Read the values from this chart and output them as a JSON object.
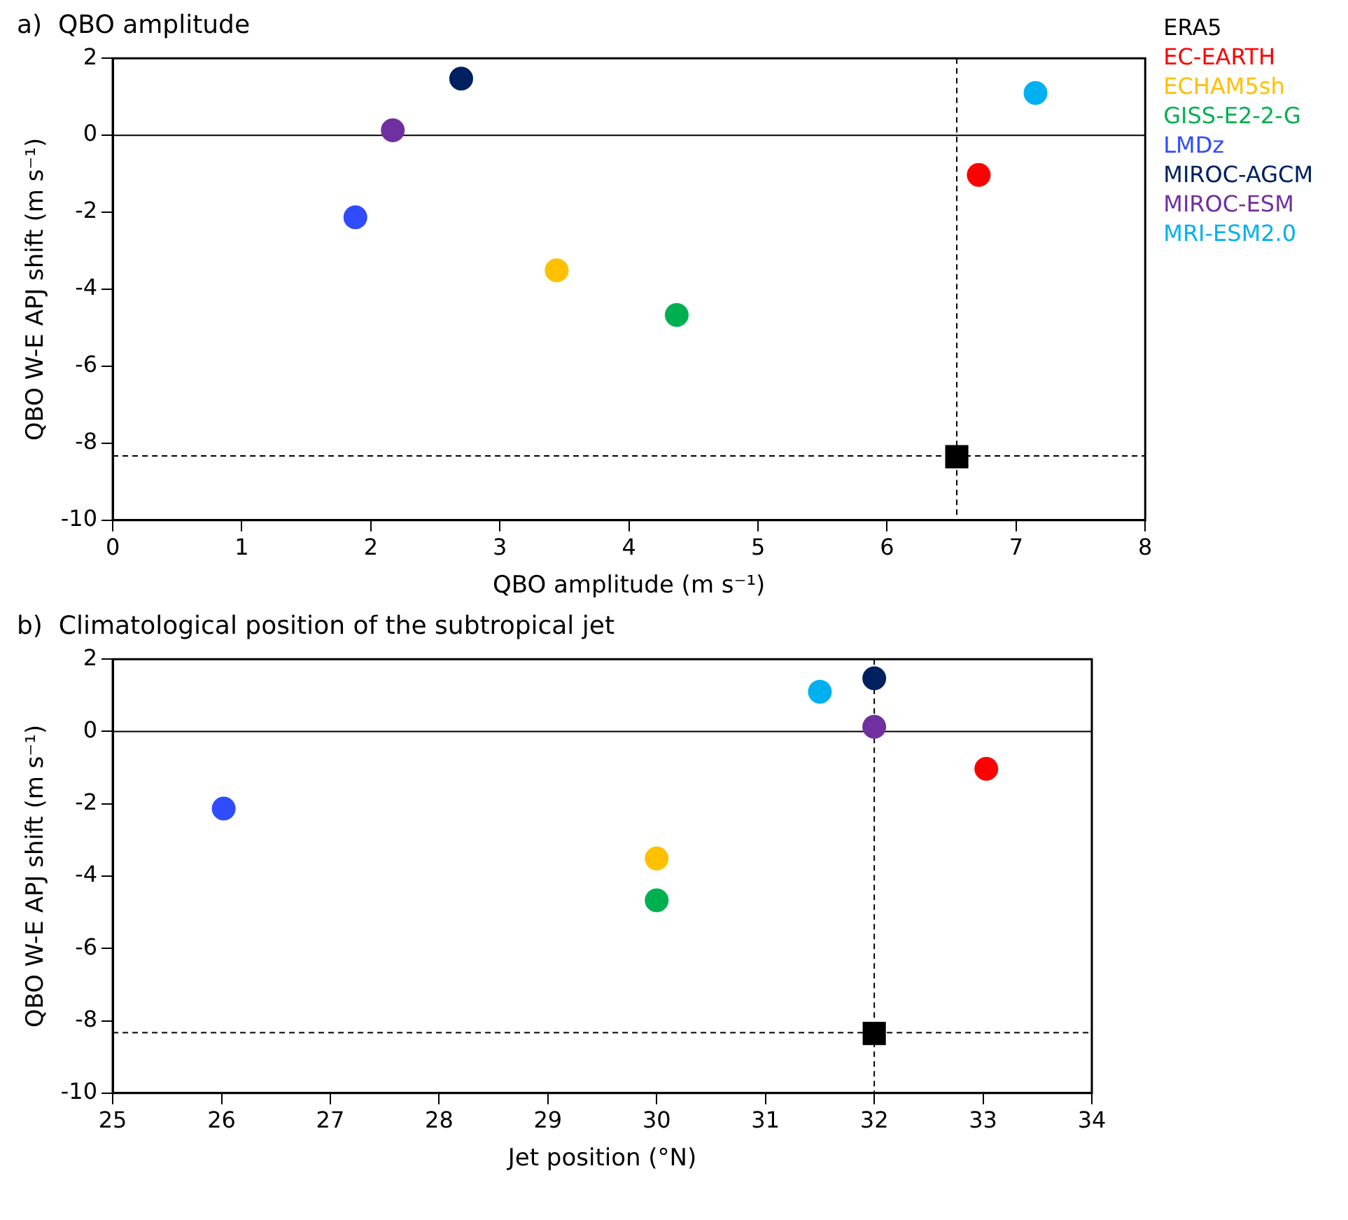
{
  "chart_data": [
    {
      "type": "scatter",
      "title": "a)  QBO amplitude",
      "xlabel": "QBO amplitude (m s⁻¹)",
      "ylabel": "QBO W-E APJ shift (m s⁻¹)",
      "xlim": [
        0,
        8
      ],
      "xticks": [
        0,
        1,
        2,
        3,
        4,
        5,
        6,
        7,
        8
      ],
      "ylim": [
        -10,
        2
      ],
      "yticks": [
        -10,
        -8,
        -6,
        -4,
        -2,
        0,
        2
      ],
      "grid": false,
      "legend": "top right",
      "marker": "circle",
      "ref_lines": [
        {
          "axis": "y",
          "value": 0,
          "color": "#000000",
          "line_style": "solid"
        },
        {
          "axis": "x",
          "value": 6.54,
          "color": "#000000",
          "line_style": "dashed"
        },
        {
          "axis": "y",
          "value": -8.33,
          "color": "#000000",
          "line_style": "dashed"
        }
      ],
      "series": [
        {
          "name": "ERA5",
          "color": "#000000",
          "marker": "square",
          "x": [
            6.54
          ],
          "values": [
            -8.35
          ]
        },
        {
          "name": "EC-EARTH",
          "color": "#ff0000",
          "x": [
            6.71
          ],
          "values": [
            -1.03
          ]
        },
        {
          "name": "ECHAM5sh",
          "color": "#ffc000",
          "x": [
            3.44
          ],
          "values": [
            -3.51
          ]
        },
        {
          "name": "GISS-E2-2-G",
          "color": "#00b050",
          "x": [
            4.37
          ],
          "values": [
            -4.67
          ]
        },
        {
          "name": "LMDz",
          "color": "#2f4cff",
          "x": [
            1.88
          ],
          "values": [
            -2.13
          ]
        },
        {
          "name": "MIROC-AGCM",
          "color": "#002060",
          "x": [
            2.7
          ],
          "values": [
            1.47
          ]
        },
        {
          "name": "MIROC-ESM",
          "color": "#7030a0",
          "x": [
            2.17
          ],
          "values": [
            0.13
          ]
        },
        {
          "name": "MRI-ESM2.0",
          "color": "#00b0f0",
          "x": [
            7.15
          ],
          "values": [
            1.1
          ]
        }
      ]
    },
    {
      "type": "scatter",
      "title": "b)  Climatological position of the subtropical jet",
      "xlabel": "Jet position (°N)",
      "ylabel": "QBO W-E APJ shift (m s⁻¹)",
      "xlim": [
        25,
        34
      ],
      "xticks": [
        25,
        26,
        27,
        28,
        29,
        30,
        31,
        32,
        33,
        34
      ],
      "ylim": [
        -10,
        2
      ],
      "yticks": [
        -10,
        -8,
        -6,
        -4,
        -2,
        0,
        2
      ],
      "grid": false,
      "marker": "circle",
      "ref_lines": [
        {
          "axis": "y",
          "value": 0,
          "color": "#000000",
          "line_style": "solid"
        },
        {
          "axis": "x",
          "value": 32,
          "color": "#000000",
          "line_style": "dashed"
        },
        {
          "axis": "y",
          "value": -8.33,
          "color": "#000000",
          "line_style": "dashed"
        }
      ],
      "series": [
        {
          "color": "#000000",
          "marker": "square",
          "x": [
            32
          ],
          "values": [
            -8.35
          ]
        },
        {
          "color": "#ff0000",
          "x": [
            33.03
          ],
          "values": [
            -1.03
          ]
        },
        {
          "color": "#ffc000",
          "x": [
            30
          ],
          "values": [
            -3.51
          ]
        },
        {
          "color": "#00b050",
          "x": [
            30
          ],
          "values": [
            -4.67
          ]
        },
        {
          "color": "#2f4cff",
          "x": [
            26.02
          ],
          "values": [
            -2.13
          ]
        },
        {
          "color": "#002060",
          "x": [
            32
          ],
          "values": [
            1.47
          ]
        },
        {
          "color": "#7030a0",
          "x": [
            32
          ],
          "values": [
            0.13
          ]
        },
        {
          "color": "#00b0f0",
          "x": [
            31.5
          ],
          "values": [
            1.1
          ]
        }
      ]
    }
  ]
}
